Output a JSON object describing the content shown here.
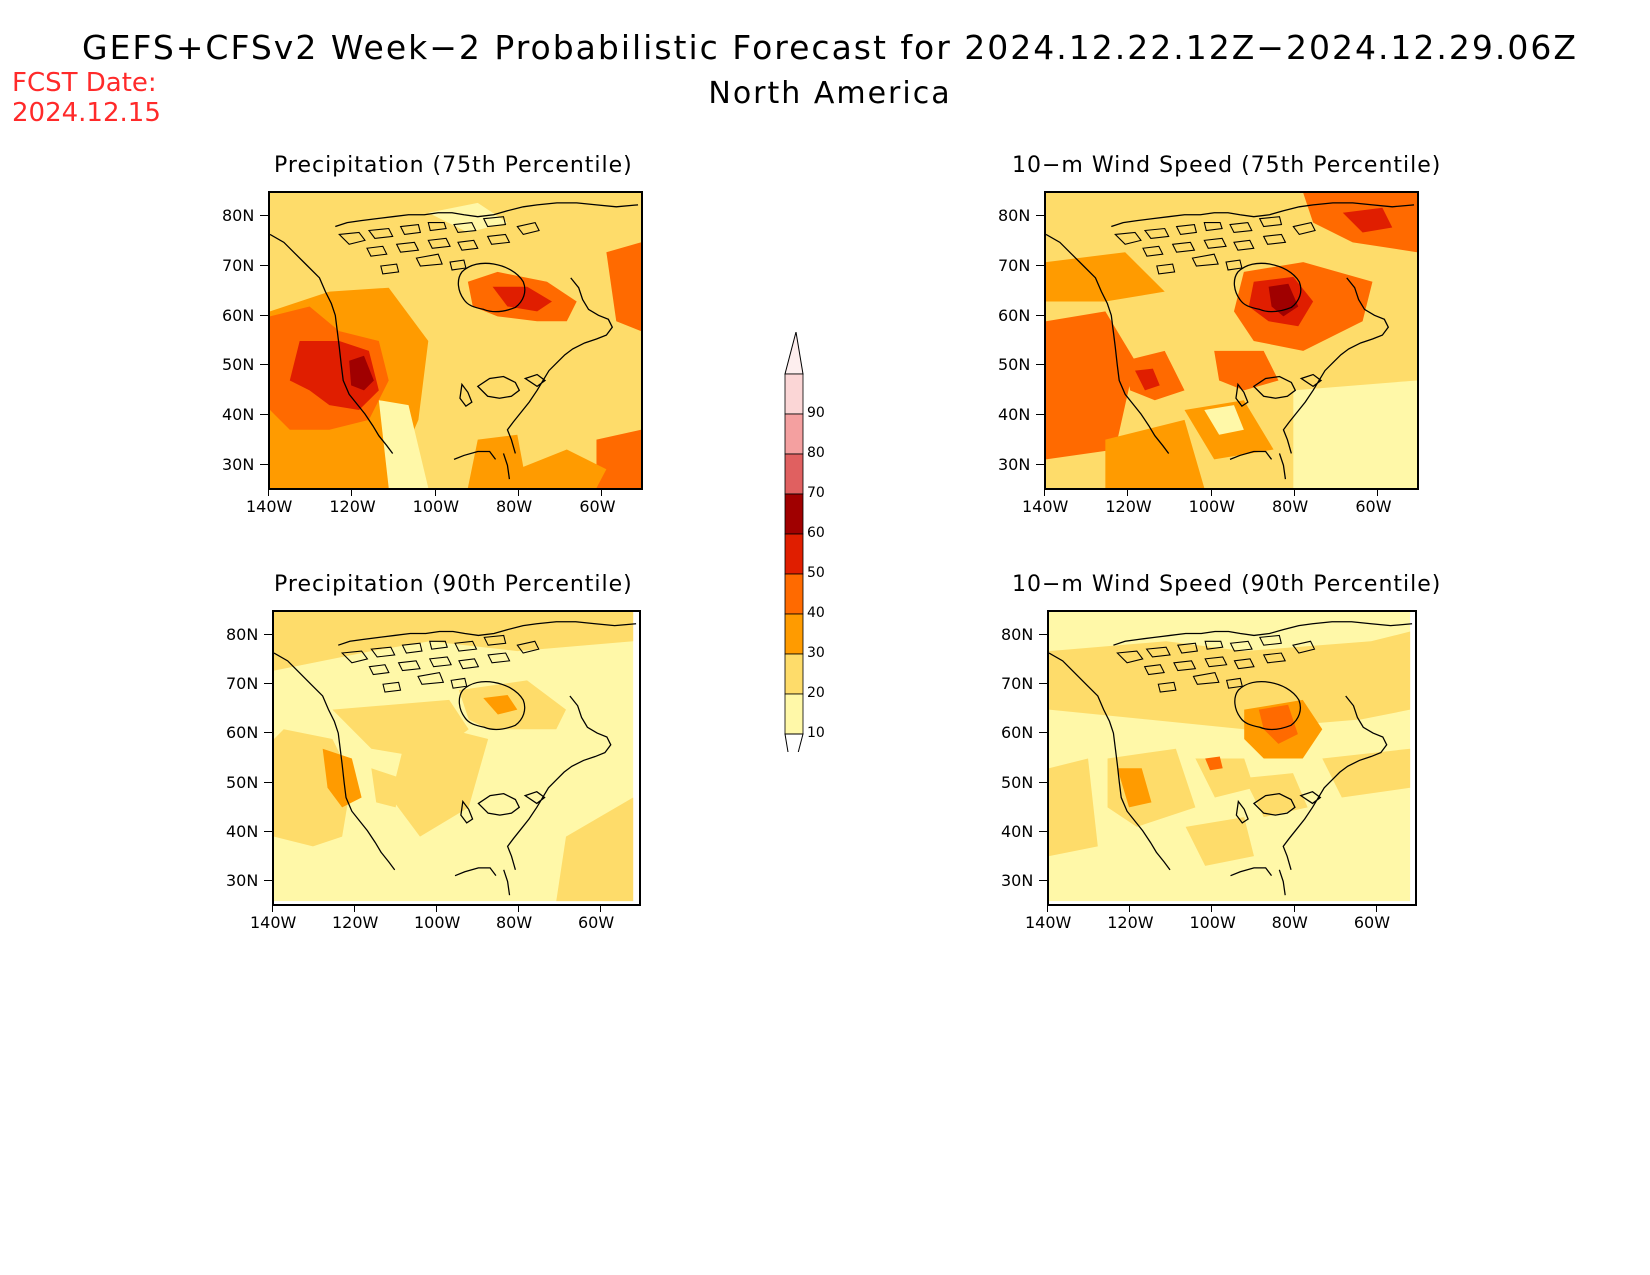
{
  "title": "GEFS+CFSv2 Week−2 Probabilistic Forecast for 2024.12.22.12Z−2024.12.29.06Z",
  "subtitle": "North America",
  "fcst": {
    "line1": "FCST Date:",
    "line2": "2024.12.15"
  },
  "panels": [
    {
      "title": "Precipitation (75th Percentile)"
    },
    {
      "title": "10−m Wind Speed (75th Percentile)"
    },
    {
      "title": "Precipitation (90th Percentile)"
    },
    {
      "title": "10−m Wind Speed (90th Percentile)"
    }
  ],
  "axes": {
    "lat_labels": [
      "80N",
      "70N",
      "60N",
      "50N",
      "40N",
      "30N"
    ],
    "lat_values": [
      80,
      70,
      60,
      50,
      40,
      30
    ],
    "lon_labels": [
      "140W",
      "120W",
      "100W",
      "80W",
      "60W"
    ],
    "lon_values": [
      -140,
      -120,
      -100,
      -80,
      -60
    ],
    "lat_range": [
      25,
      85
    ],
    "lon_range": [
      -140,
      -50
    ]
  },
  "colorbar": {
    "levels": [
      "90",
      "80",
      "70",
      "60",
      "50",
      "40",
      "30",
      "20",
      "10"
    ],
    "colors": [
      "#fbd6d6",
      "#f4a0a0",
      "#e06060",
      "#a00000",
      "#e01e00",
      "#ff6a00",
      "#ff9b00",
      "#fedc6a",
      "#fff8a8"
    ]
  }
}
